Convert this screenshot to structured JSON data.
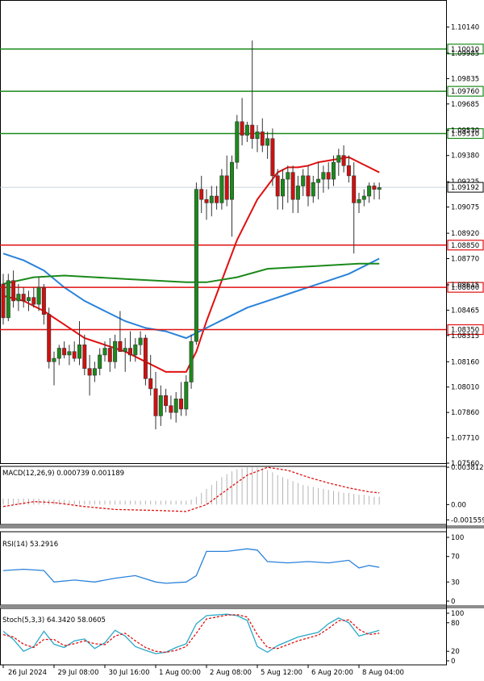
{
  "chart_data": {
    "type": "candlestick",
    "price_axis": {
      "range": [
        1.0756,
        1.103
      ],
      "ticks": [
        "1.10140",
        "1.09985",
        "1.09835",
        "1.09685",
        "1.09530",
        "1.09380",
        "1.09225",
        "1.09075",
        "1.08920",
        "1.08770",
        "1.08615",
        "1.08465",
        "1.08315",
        "1.08160",
        "1.08010",
        "1.07860",
        "1.07710",
        "1.07560"
      ],
      "current_price": "1.09192",
      "current_value": 1.09192
    },
    "levels": [
      {
        "label": "1.10010",
        "value": 1.1001,
        "color": "#1b8a1b"
      },
      {
        "label": "1.09760",
        "value": 1.0976,
        "color": "#1b8a1b"
      },
      {
        "label": "1.09510",
        "value": 1.0951,
        "color": "#1b8a1b"
      },
      {
        "label": "1.08850",
        "value": 1.0885,
        "color": "#e01010"
      },
      {
        "label": "1.08600",
        "value": 1.086,
        "color": "#e01010"
      },
      {
        "label": "1.08350",
        "value": 1.0835,
        "color": "#e01010"
      }
    ],
    "time_labels": [
      {
        "label": "26 Jul 2024",
        "index": 0
      },
      {
        "label": "29 Jul 08:00",
        "index": 10
      },
      {
        "label": "30 Jul 16:00",
        "index": 20
      },
      {
        "label": "1 Aug 00:00",
        "index": 30
      },
      {
        "label": "2 Aug 08:00",
        "index": 40
      },
      {
        "label": "5 Aug 12:00",
        "index": 50
      },
      {
        "label": "6 Aug 20:00",
        "index": 60
      },
      {
        "label": "8 Aug 04:00",
        "index": 70
      }
    ],
    "candles": [
      [
        1.0862,
        1.0868,
        1.0838,
        1.0842
      ],
      [
        1.0842,
        1.0868,
        1.084,
        1.0864
      ],
      [
        1.0864,
        1.087,
        1.0848,
        1.0852
      ],
      [
        1.0852,
        1.0862,
        1.0846,
        1.0856
      ],
      [
        1.0856,
        1.086,
        1.0848,
        1.0852
      ],
      [
        1.0852,
        1.0858,
        1.0846,
        1.0854
      ],
      [
        1.0854,
        1.086,
        1.0848,
        1.085
      ],
      [
        1.085,
        1.0866,
        1.0846,
        1.086
      ],
      [
        1.086,
        1.0862,
        1.0838,
        1.0844
      ],
      [
        1.0844,
        1.0848,
        1.0812,
        1.0816
      ],
      [
        1.0816,
        1.0822,
        1.0802,
        1.0818
      ],
      [
        1.0818,
        1.0826,
        1.0814,
        1.0824
      ],
      [
        1.0824,
        1.0828,
        1.0818,
        1.082
      ],
      [
        1.082,
        1.0826,
        1.0814,
        1.0822
      ],
      [
        1.0822,
        1.0828,
        1.0816,
        1.0818
      ],
      [
        1.0818,
        1.084,
        1.0814,
        1.0826
      ],
      [
        1.0826,
        1.0832,
        1.0808,
        1.0812
      ],
      [
        1.0812,
        1.082,
        1.0796,
        1.0808
      ],
      [
        1.0808,
        1.0816,
        1.0804,
        1.0812
      ],
      [
        1.0812,
        1.0824,
        1.0808,
        1.082
      ],
      [
        1.082,
        1.0828,
        1.0816,
        1.0824
      ],
      [
        1.0824,
        1.083,
        1.081,
        1.0816
      ],
      [
        1.0816,
        1.0832,
        1.0812,
        1.0828
      ],
      [
        1.0828,
        1.0846,
        1.0822,
        1.0822
      ],
      [
        1.0822,
        1.083,
        1.081,
        1.0824
      ],
      [
        1.0824,
        1.0834,
        1.0816,
        1.082
      ],
      [
        1.082,
        1.083,
        1.0816,
        1.0826
      ],
      [
        1.0826,
        1.0834,
        1.082,
        1.083
      ],
      [
        1.083,
        1.0832,
        1.0802,
        1.0806
      ],
      [
        1.0806,
        1.082,
        1.0796,
        1.08
      ],
      [
        1.08,
        1.081,
        1.0776,
        1.0784
      ],
      [
        1.0784,
        1.0802,
        1.0778,
        1.0796
      ],
      [
        1.0796,
        1.08,
        1.0786,
        1.079
      ],
      [
        1.079,
        1.0796,
        1.0782,
        1.0786
      ],
      [
        1.0786,
        1.0798,
        1.078,
        1.0794
      ],
      [
        1.0794,
        1.0804,
        1.0784,
        1.0788
      ],
      [
        1.0788,
        1.0808,
        1.0784,
        1.0804
      ],
      [
        1.0804,
        1.0832,
        1.08,
        1.0828
      ],
      [
        1.0828,
        1.0922,
        1.0826,
        1.0918
      ],
      [
        1.0918,
        1.0926,
        1.0904,
        1.0912
      ],
      [
        1.0912,
        1.0918,
        1.09,
        1.091
      ],
      [
        1.091,
        1.092,
        1.0902,
        1.0914
      ],
      [
        1.0914,
        1.092,
        1.0906,
        1.091
      ],
      [
        1.091,
        1.093,
        1.0906,
        1.0926
      ],
      [
        1.0926,
        1.0938,
        1.0908,
        1.0912
      ],
      [
        1.0912,
        1.0938,
        1.089,
        1.0934
      ],
      [
        1.0934,
        1.0962,
        1.093,
        1.0958
      ],
      [
        1.0958,
        1.0972,
        1.0944,
        1.095
      ],
      [
        1.095,
        1.0958,
        1.0946,
        1.0956
      ],
      [
        1.0956,
        1.1006,
        1.0942,
        1.0948
      ],
      [
        1.0948,
        1.0956,
        1.094,
        1.0952
      ],
      [
        1.0952,
        1.096,
        1.094,
        1.0944
      ],
      [
        1.0944,
        1.0952,
        1.0936,
        1.0948
      ],
      [
        1.0948,
        1.0954,
        1.092,
        1.0926
      ],
      [
        1.0926,
        1.093,
        1.0906,
        1.0914
      ],
      [
        1.0914,
        1.093,
        1.0906,
        1.0924
      ],
      [
        1.0924,
        1.0932,
        1.091,
        1.0928
      ],
      [
        1.0928,
        1.0932,
        1.0904,
        1.0912
      ],
      [
        1.0912,
        1.0926,
        1.0904,
        1.092
      ],
      [
        1.092,
        1.093,
        1.0914,
        1.0926
      ],
      [
        1.0926,
        1.0932,
        1.0908,
        1.0914
      ],
      [
        1.0914,
        1.0926,
        1.091,
        1.0922
      ],
      [
        1.0922,
        1.0934,
        1.0912,
        1.0924
      ],
      [
        1.0924,
        1.0932,
        1.0916,
        1.0928
      ],
      [
        1.0928,
        1.0934,
        1.0918,
        1.0924
      ],
      [
        1.0924,
        1.0938,
        1.092,
        1.0934
      ],
      [
        1.0934,
        1.0942,
        1.0926,
        1.0938
      ],
      [
        1.0938,
        1.0944,
        1.0928,
        1.0932
      ],
      [
        1.0932,
        1.0938,
        1.0922,
        1.0926
      ],
      [
        1.0926,
        1.0934,
        1.088,
        1.091
      ],
      [
        1.091,
        1.0916,
        1.0904,
        1.0912
      ],
      [
        1.0912,
        1.0918,
        1.0908,
        1.0914
      ],
      [
        1.0914,
        1.0922,
        1.091,
        1.092
      ],
      [
        1.092,
        1.0922,
        1.0912,
        1.0918
      ],
      [
        1.0918,
        1.0922,
        1.0912,
        1.0919
      ]
    ],
    "moving_averages": [
      {
        "color": "#e01010",
        "points": [
          [
            0,
            1.0855
          ],
          [
            4,
            1.0852
          ],
          [
            8,
            1.0846
          ],
          [
            12,
            1.0838
          ],
          [
            16,
            1.083
          ],
          [
            20,
            1.0826
          ],
          [
            24,
            1.0822
          ],
          [
            28,
            1.0816
          ],
          [
            32,
            1.081
          ],
          [
            36,
            1.081
          ],
          [
            38,
            1.0822
          ],
          [
            40,
            1.084
          ],
          [
            42,
            1.0856
          ],
          [
            44,
            1.0872
          ],
          [
            46,
            1.0888
          ],
          [
            48,
            1.09
          ],
          [
            50,
            1.0912
          ],
          [
            52,
            1.092
          ],
          [
            54,
            1.0928
          ],
          [
            56,
            1.0931
          ],
          [
            58,
            1.0931
          ],
          [
            60,
            1.0932
          ],
          [
            62,
            1.0934
          ],
          [
            64,
            1.0935
          ],
          [
            66,
            1.0936
          ],
          [
            68,
            1.0937
          ],
          [
            70,
            1.0934
          ],
          [
            72,
            1.0931
          ],
          [
            74,
            1.0928
          ]
        ]
      },
      {
        "color": "#2a82da",
        "points": [
          [
            0,
            1.088
          ],
          [
            4,
            1.0876
          ],
          [
            8,
            1.087
          ],
          [
            12,
            1.086
          ],
          [
            16,
            1.0852
          ],
          [
            20,
            1.0846
          ],
          [
            24,
            1.084
          ],
          [
            28,
            1.0836
          ],
          [
            32,
            1.0834
          ],
          [
            34,
            1.0832
          ],
          [
            36,
            1.083
          ],
          [
            40,
            1.0836
          ],
          [
            44,
            1.0842
          ],
          [
            48,
            1.0848
          ],
          [
            52,
            1.0852
          ],
          [
            56,
            1.0856
          ],
          [
            60,
            1.086
          ],
          [
            64,
            1.0864
          ],
          [
            68,
            1.0868
          ],
          [
            72,
            1.0874
          ],
          [
            74,
            1.0877
          ]
        ]
      },
      {
        "color": "#1b8a1b",
        "points": [
          [
            0,
            1.0862
          ],
          [
            6,
            1.0866
          ],
          [
            12,
            1.0867
          ],
          [
            18,
            1.0866
          ],
          [
            24,
            1.0865
          ],
          [
            30,
            1.0864
          ],
          [
            36,
            1.0863
          ],
          [
            40,
            1.0863
          ],
          [
            46,
            1.0866
          ],
          [
            52,
            1.0871
          ],
          [
            58,
            1.0872
          ],
          [
            64,
            1.0873
          ],
          [
            70,
            1.0874
          ],
          [
            74,
            1.0874
          ]
        ]
      }
    ],
    "macd": {
      "label": "MACD(12,26,9) 0.000739 0.001189",
      "ticks": [
        "0.003812",
        "0.00",
        "-0.001559"
      ],
      "range": [
        -0.0017,
        0.0039
      ],
      "histogram": [
        0.0006,
        0.0006,
        0.0006,
        0.0006,
        0.0006,
        0.0006,
        0.0006,
        0.0006,
        0.0005,
        0.0005,
        0.0005,
        0.0005,
        0.0005,
        0.0004,
        0.0004,
        0.0004,
        0.0004,
        0.0004,
        0.0004,
        0.0004,
        0.0004,
        0.0004,
        0.0004,
        0.0004,
        0.0004,
        0.0004,
        0.0004,
        0.0004,
        0.0004,
        0.0004,
        0.0004,
        0.0004,
        0.0004,
        0.0004,
        0.0004,
        0.0004,
        0.0004,
        0.0005,
        0.0008,
        0.0012,
        0.0016,
        0.002,
        0.0024,
        0.0028,
        0.0031,
        0.0034,
        0.0036,
        0.0037,
        0.0038,
        0.0038,
        0.0038,
        0.0037,
        0.0035,
        0.0033,
        0.003,
        0.0028,
        0.0026,
        0.0024,
        0.0022,
        0.002,
        0.0019,
        0.0018,
        0.0017,
        0.0016,
        0.0015,
        0.0014,
        0.0013,
        0.0012,
        0.0012,
        0.0011,
        0.001,
        0.001,
        0.0009,
        0.0008,
        0.0008
      ],
      "signal": [
        [
          0,
          -0.0002
        ],
        [
          6,
          0.0003
        ],
        [
          10,
          0.0002
        ],
        [
          16,
          -0.0002
        ],
        [
          22,
          -0.0005
        ],
        [
          30,
          -0.0006
        ],
        [
          36,
          -0.0007
        ],
        [
          40,
          0.0
        ],
        [
          44,
          0.0015
        ],
        [
          48,
          0.003
        ],
        [
          52,
          0.0038
        ],
        [
          56,
          0.0035
        ],
        [
          60,
          0.0028
        ],
        [
          64,
          0.0022
        ],
        [
          68,
          0.0017
        ],
        [
          72,
          0.0013
        ],
        [
          74,
          0.0012
        ]
      ]
    },
    "rsi": {
      "label": "RSI(14) 53.2916",
      "ticks": [
        "100",
        "70",
        "30",
        "0"
      ],
      "range": [
        0,
        100
      ],
      "points": [
        [
          0,
          48
        ],
        [
          4,
          50
        ],
        [
          8,
          48
        ],
        [
          10,
          30
        ],
        [
          14,
          33
        ],
        [
          18,
          30
        ],
        [
          22,
          36
        ],
        [
          26,
          40
        ],
        [
          30,
          30
        ],
        [
          32,
          28
        ],
        [
          36,
          30
        ],
        [
          38,
          40
        ],
        [
          40,
          78
        ],
        [
          44,
          78
        ],
        [
          48,
          82
        ],
        [
          50,
          80
        ],
        [
          52,
          62
        ],
        [
          56,
          60
        ],
        [
          60,
          62
        ],
        [
          64,
          60
        ],
        [
          68,
          64
        ],
        [
          70,
          52
        ],
        [
          72,
          56
        ],
        [
          74,
          53
        ]
      ]
    },
    "stoch": {
      "label": "Stoch(5,3,3) 64.3420 58.0605",
      "ticks": [
        "100",
        "80",
        "20",
        "0"
      ],
      "range": [
        0,
        100
      ],
      "k": [
        [
          0,
          62
        ],
        [
          2,
          45
        ],
        [
          4,
          20
        ],
        [
          6,
          30
        ],
        [
          8,
          62
        ],
        [
          10,
          35
        ],
        [
          12,
          28
        ],
        [
          14,
          42
        ],
        [
          16,
          46
        ],
        [
          18,
          26
        ],
        [
          20,
          38
        ],
        [
          22,
          64
        ],
        [
          24,
          52
        ],
        [
          26,
          30
        ],
        [
          28,
          22
        ],
        [
          30,
          15
        ],
        [
          32,
          18
        ],
        [
          34,
          28
        ],
        [
          36,
          36
        ],
        [
          38,
          78
        ],
        [
          40,
          95
        ],
        [
          44,
          98
        ],
        [
          46,
          95
        ],
        [
          48,
          85
        ],
        [
          50,
          30
        ],
        [
          52,
          18
        ],
        [
          54,
          32
        ],
        [
          58,
          50
        ],
        [
          62,
          60
        ],
        [
          64,
          78
        ],
        [
          66,
          90
        ],
        [
          68,
          80
        ],
        [
          70,
          52
        ],
        [
          72,
          58
        ],
        [
          74,
          64
        ]
      ],
      "d": [
        [
          0,
          55
        ],
        [
          2,
          50
        ],
        [
          4,
          35
        ],
        [
          6,
          28
        ],
        [
          8,
          45
        ],
        [
          10,
          45
        ],
        [
          12,
          32
        ],
        [
          14,
          36
        ],
        [
          16,
          42
        ],
        [
          18,
          36
        ],
        [
          20,
          34
        ],
        [
          22,
          52
        ],
        [
          24,
          58
        ],
        [
          26,
          42
        ],
        [
          28,
          28
        ],
        [
          30,
          20
        ],
        [
          32,
          18
        ],
        [
          34,
          22
        ],
        [
          36,
          30
        ],
        [
          38,
          58
        ],
        [
          40,
          88
        ],
        [
          44,
          96
        ],
        [
          46,
          97
        ],
        [
          48,
          92
        ],
        [
          50,
          55
        ],
        [
          52,
          28
        ],
        [
          54,
          26
        ],
        [
          58,
          42
        ],
        [
          62,
          54
        ],
        [
          64,
          68
        ],
        [
          66,
          84
        ],
        [
          68,
          86
        ],
        [
          70,
          66
        ],
        [
          72,
          55
        ],
        [
          74,
          58
        ]
      ]
    }
  }
}
